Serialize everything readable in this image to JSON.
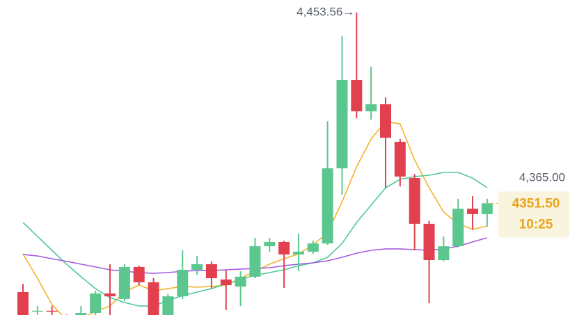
{
  "chart_data": {
    "type": "candlestick",
    "ylim": [
      4291.7,
      4460.3
    ],
    "up_color": "#5cc68f",
    "down_color": "#e2404f",
    "open": [
      4304.0,
      4293.5,
      4294.0,
      4291.0,
      4290.5,
      4292.8,
      4303.2,
      4300.3,
      4317.4,
      4309.2,
      4290.0,
      4301.7,
      4315.9,
      4318.9,
      4310.7,
      4306.9,
      4312.2,
      4328.5,
      4330.8,
      4324.1,
      4325.6,
      4330.0,
      4370.2,
      4417.5,
      4400.7,
      4404.5,
      4384.4,
      4365.0,
      4340.5,
      4321.1,
      4328.5,
      4348.6,
      4345.7
    ],
    "high": [
      4308.4,
      4296.5,
      4296.5,
      4292.0,
      4296.5,
      4304.7,
      4318.9,
      4318.9,
      4318.1,
      4311.4,
      4303.0,
      4326.3,
      4323.3,
      4320.4,
      4315.9,
      4315.1,
      4333.0,
      4333.0,
      4331.5,
      4335.2,
      4331.5,
      4395.5,
      4440.9,
      4453.56,
      4424.6,
      4408.2,
      4385.9,
      4367.2,
      4342.0,
      4333.8,
      4353.9,
      4355.3,
      4353.9
    ],
    "low": [
      4288.0,
      4288.0,
      4288.0,
      4288.0,
      4289.0,
      4291.7,
      4291.7,
      4299.1,
      4307.7,
      4288.0,
      4288.0,
      4300.3,
      4313.3,
      4305.8,
      4294.3,
      4296.5,
      4311.4,
      4325.6,
      4306.2,
      4315.1,
      4324.5,
      4329.3,
      4356.1,
      4397.0,
      4396.3,
      4359.8,
      4360.5,
      4326.3,
      4298.0,
      4320.4,
      4327.8,
      4337.5,
      4339.0
    ],
    "close": [
      4290.5,
      4294.0,
      4293.5,
      4290.5,
      4292.8,
      4303.2,
      4301.7,
      4317.4,
      4309.2,
      4290.0,
      4301.7,
      4315.9,
      4318.9,
      4311.4,
      4307.7,
      4312.2,
      4328.5,
      4330.8,
      4324.1,
      4325.6,
      4330.0,
      4370.2,
      4417.5,
      4400.7,
      4404.5,
      4386.6,
      4365.8,
      4340.5,
      4321.1,
      4328.5,
      4348.6,
      4345.7,
      4351.5
    ],
    "series": [
      {
        "color": "#f0b429",
        "values": [
          4324.4,
          4311.4,
          4297.3,
          4289.1,
          4289.8,
          4293.6,
          4296.5,
          4304.0,
          4307.7,
          4304.7,
          4305.8,
          4307.0,
          4306.6,
          4307.0,
          4307.7,
          4311.4,
          4315.1,
          4318.9,
          4321.8,
          4324.4,
          4329.3,
          4335.6,
          4352.4,
          4371.0,
          4385.9,
          4395.2,
          4394.0,
          4374.7,
          4359.8,
          4346.8,
          4340.5,
          4337.5,
          4339.3
        ]
      },
      {
        "color": "#4fc79a",
        "values": [
          4341.2,
          4333.8,
          4326.3,
          4318.9,
          4312.2,
          4305.8,
          4301.0,
          4298.4,
          4296.5,
          4296.5,
          4299.5,
          4302.1,
          4304.0,
          4305.8,
          4308.4,
          4310.7,
          4312.9,
          4314.4,
          4315.9,
          4318.1,
          4319.6,
          4322.6,
          4330.0,
          4341.2,
          4350.5,
          4359.8,
          4364.3,
          4365.8,
          4366.5,
          4368.0,
          4368.0,
          4365.0,
          4359.8
        ]
      },
      {
        "color": "#a55ce0",
        "values": [
          4324.1,
          4323.3,
          4321.8,
          4320.4,
          4318.9,
          4317.4,
          4315.9,
          4315.1,
          4314.4,
          4314.0,
          4314.4,
          4315.1,
          4315.5,
          4315.5,
          4315.9,
          4316.3,
          4316.6,
          4317.0,
          4318.1,
          4318.9,
          4319.6,
          4320.7,
          4322.6,
          4324.8,
          4326.3,
          4327.1,
          4327.1,
          4326.7,
          4326.3,
          4327.1,
          4328.5,
          4330.8,
          4333.0
        ]
      }
    ],
    "high_label": {
      "value": 4453.56,
      "label": "4,453.56→"
    },
    "level_label": {
      "value": 4365.0,
      "label": "4,365.00"
    },
    "price_label": {
      "value": 4351.5,
      "label": "4351.50",
      "time": "10:25"
    }
  }
}
